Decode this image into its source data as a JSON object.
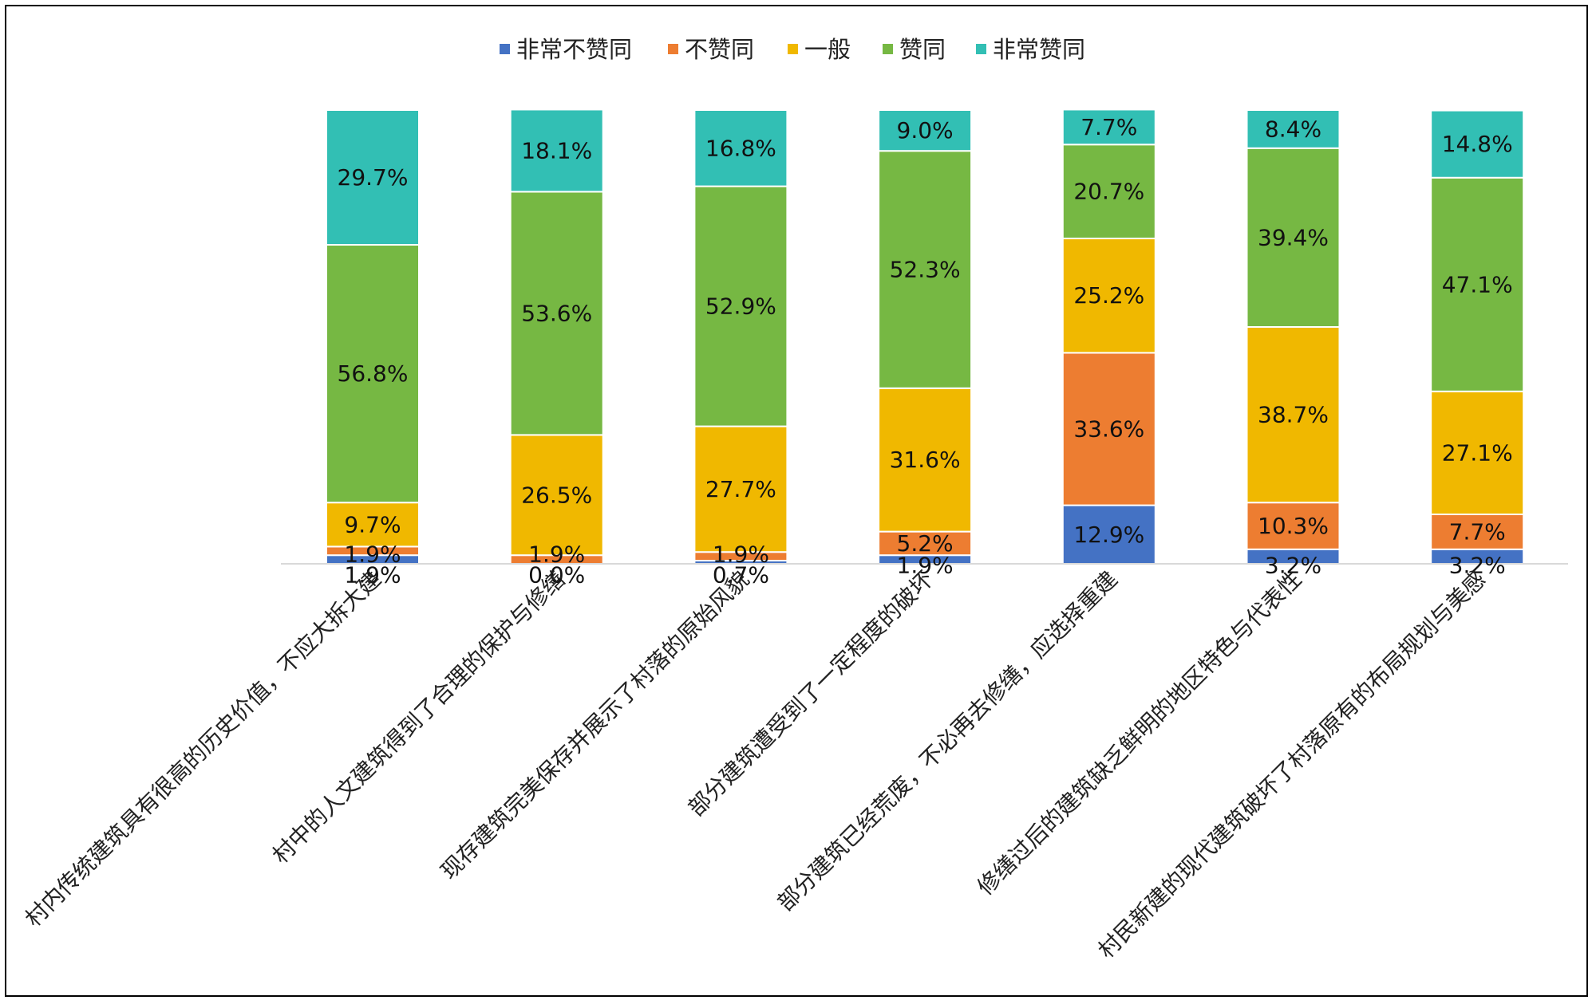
{
  "chart_data": {
    "type": "bar",
    "stacked": true,
    "percent_stacked": true,
    "legend_position": "top",
    "grid": false,
    "categories": [
      "村内传统建筑具有很高的历史价值，不应大拆大建",
      "村中的人文建筑得到了合理的保护与修缮",
      "现存建筑完美保存并展示了村落的原始风貌",
      "部分建筑遭受到了一定程度的破坏",
      "部分建筑已经荒废，不必再去修缮，应选择重建",
      "修缮过后的建筑缺乏鲜明的地区特色与代表性",
      "村民新建的现代建筑破坏了村落原有的布局规划与美感"
    ],
    "series": [
      {
        "name": "非常不赞同",
        "color": "#4472C4",
        "values": [
          1.9,
          0.0,
          0.7,
          1.9,
          12.9,
          3.2,
          3.2
        ],
        "labels": [
          "1.9%",
          "0.0%",
          "0.7%",
          "1.9%",
          "12.9%",
          "3.2%",
          "3.2%"
        ]
      },
      {
        "name": "不赞同",
        "color": "#ED7D31",
        "values": [
          1.9,
          1.9,
          1.9,
          5.2,
          33.6,
          10.3,
          7.7
        ],
        "labels": [
          "1.9%",
          "1.9%",
          "1.9%",
          "5.2%",
          "33.6%",
          "10.3%",
          "7.7%"
        ]
      },
      {
        "name": "一般",
        "color": "#F0B800",
        "values": [
          9.7,
          26.5,
          27.7,
          31.6,
          25.2,
          38.7,
          27.1
        ],
        "labels": [
          "9.7%",
          "26.5%",
          "27.7%",
          "31.6%",
          "25.2%",
          "38.7%",
          "27.1%"
        ]
      },
      {
        "name": "赞同",
        "color": "#76B843",
        "values": [
          56.8,
          53.6,
          52.9,
          52.3,
          20.7,
          39.4,
          47.1
        ],
        "labels": [
          "56.8%",
          "53.6%",
          "52.9%",
          "52.3%",
          "20.7%",
          "39.4%",
          "47.1%"
        ]
      },
      {
        "name": "非常赞同",
        "color": "#32BFB4",
        "values": [
          29.7,
          18.1,
          16.8,
          9.0,
          7.7,
          8.4,
          14.8
        ],
        "labels": [
          "29.7%",
          "18.1%",
          "16.8%",
          "9.0%",
          "7.7%",
          "8.4%",
          "14.8%"
        ]
      }
    ]
  }
}
